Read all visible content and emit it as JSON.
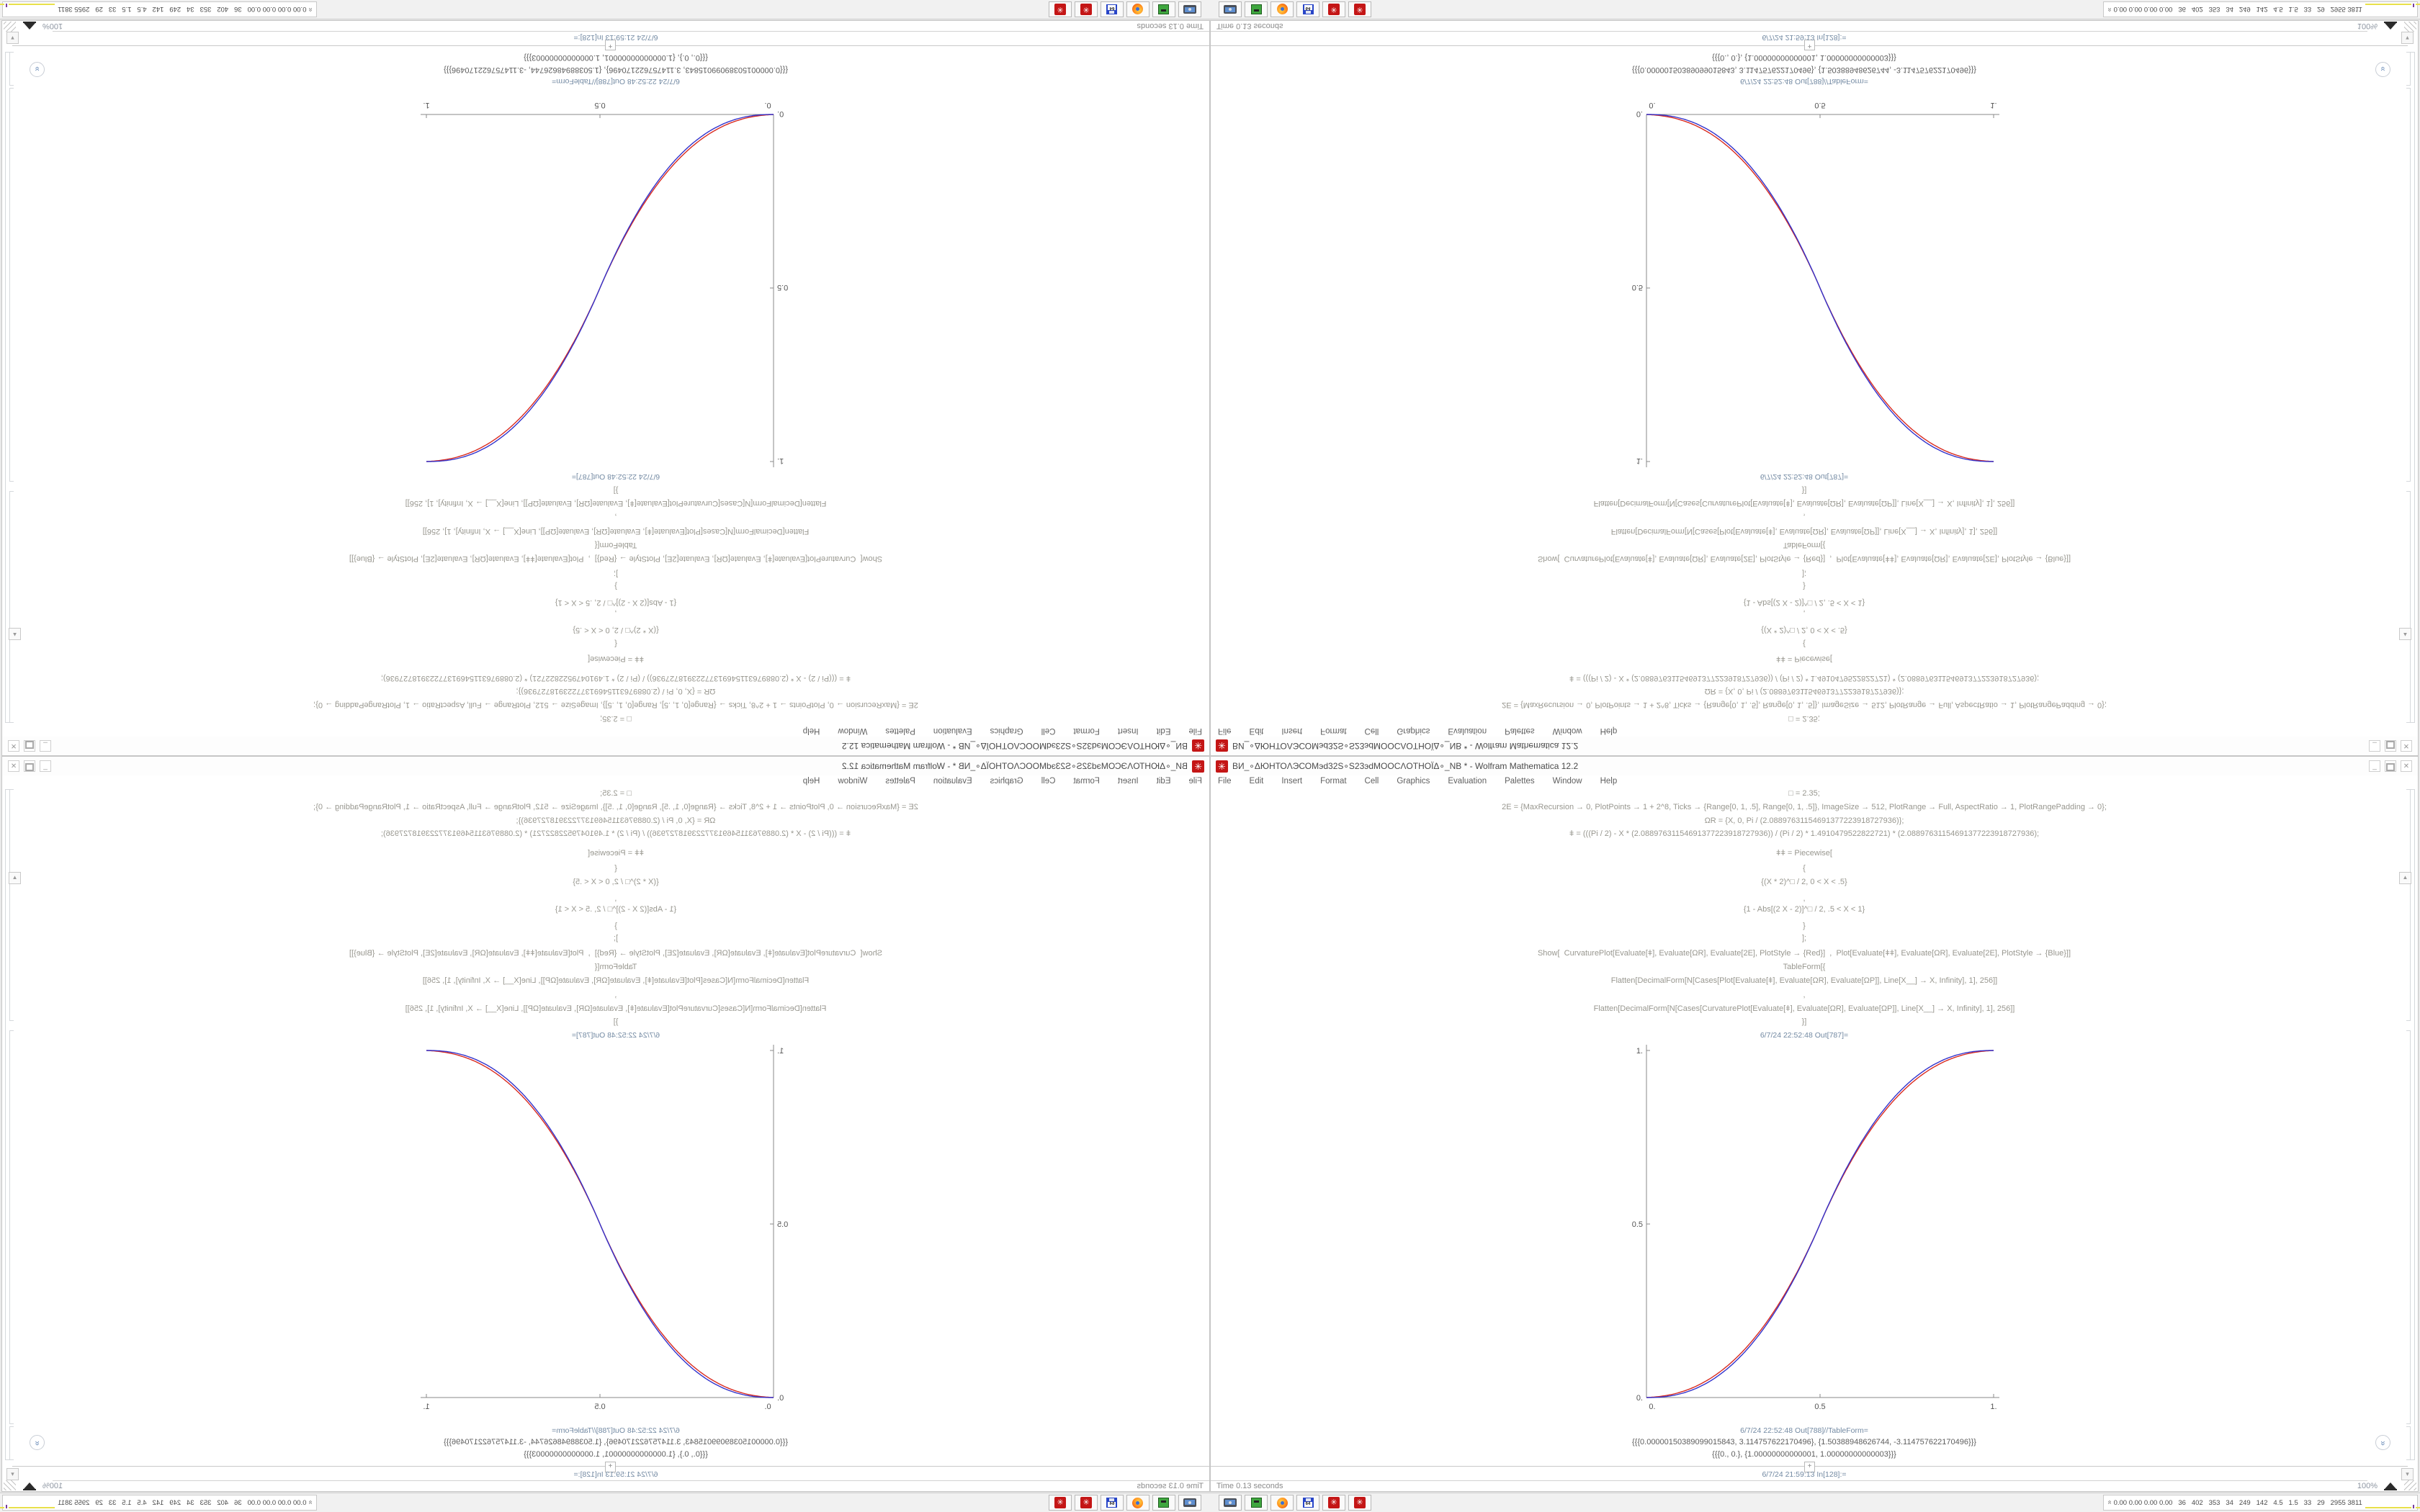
{
  "window": {
    "title": "ВИ_∘ΔЮНТОΛЭСОМэd32S∘S23эdМООСΛОТНОЇΔ∘_NB * - Wolfram Mathematica 12.2",
    "controls": {
      "minimize": "_",
      "close": "✕"
    },
    "menu": [
      "File",
      "Edit",
      "Insert",
      "Format",
      "Cell",
      "Graphics",
      "Evaluation",
      "Palettes",
      "Window",
      "Help"
    ],
    "notebook": {
      "code_lines": [
        "□ = 2.35;",
        "2Ε = {MaxRecursion → 0, PlotPoints → 1 + 2^8, Ticks → {Range[0, 1, .5], Range[0, 1, .5]}, ImageSize → 512, PlotRange → Full, AspectRatio → 1, PlotRangePadding → 0};",
        "ΩR = {X, 0, Pi / (2.08897631154691377223918727936)};",
        "ǂ = (((Pi / 2) - X * (2.08897631154691377223918727936)) / (Pi / 2) * 1.4910479522822721) * (2.08897631154691377223918727936);",
        "ǂǂ = Piecewise[",
        "{",
        "{(X * 2)^□ / 2, 0 < X < .5}",
        ",",
        "{1 - Abs[(2 X - 2)]^□ / 2, .5 < X < 1}",
        "}",
        "];",
        "Show[  CurvaturePlot[Evaluate[ǂ], Evaluate[ΩR], Evaluate[2Ε], PlotStyle → {Red}]  ,  Plot[Evaluate[ǂǂ], Evaluate[ΩR], Evaluate[2Ε], PlotStyle → {Blue}]]",
        "TableForm[{",
        "Flatten[DecimalForm[N[Cases[Plot[Evaluate[ǂ], Evaluate[ΩR], Evaluate[ΩΡ]], Line[X__] → X, Infinity], 1], 256]]",
        ",",
        "Flatten[DecimalForm[N[Cases[CurvaturePlot[Evaluate[ǂ], Evaluate[ΩR], Evaluate[ΩΡ]], Line[X__] → X, Infinity], 1], 256]]",
        "}]"
      ],
      "out1_label": "6/7/24 22:52:48 Out[787]=",
      "out2_label": "6/7/24 22:52:48 Out[788]//TableForm=",
      "out2_rows": [
        "{{{0.00000150389099015843, 3.114757622170496}, {1.50388948626744, -3.114757622170496}}}",
        "{{{0., 0.}, {1.00000000000001, 1.00000000000003}}}"
      ],
      "next_in_label": "6/7/24 21:59:13 In[128]:=",
      "insert_plus": "+",
      "elision_glyph": "»",
      "up_arrow": "▲",
      "drop_arrow": "▾"
    },
    "status": {
      "time": "Time 0.13 seconds",
      "zoom": "100%"
    }
  },
  "taskbar": {
    "icons": [
      "screenshot-tool",
      "file-manager-green",
      "firefox",
      "floppy-64",
      "mathematica-kernel",
      "mathematica-kernel"
    ],
    "floppy_label": "64",
    "mma_glyph": "✳",
    "sysmon_numbers": "0.00 0.00 0.00 0.00   36   402   353   34   249   142   4.5   1.5   33   29   2955 3811"
  },
  "chart_data": {
    "type": "line",
    "title": "6/7/24 22:52:48 Out[787]=",
    "xlabel": "",
    "ylabel": "",
    "xlim": [
      0,
      1
    ],
    "ylim": [
      0,
      1
    ],
    "aspect_ratio": 1,
    "grid": false,
    "legend_position": "none",
    "xticks": {
      "values": [
        0,
        0.5,
        1
      ],
      "labels": [
        "0.",
        "0.5",
        "1."
      ]
    },
    "yticks": {
      "values": [
        0,
        0.5,
        1
      ],
      "labels": [
        "0.",
        "0.5",
        "1."
      ]
    },
    "exponent": 2.35,
    "red_deviation_amplitude": 0.008,
    "x": [
      0,
      0.05,
      0.1,
      0.15,
      0.2,
      0.25,
      0.3,
      0.35,
      0.4,
      0.45,
      0.5,
      0.55,
      0.6,
      0.65,
      0.7,
      0.75,
      0.8,
      0.85,
      0.9,
      0.95,
      1
    ],
    "series": [
      {
        "name": "CurvaturePlot (Red)",
        "color": "#d92b20",
        "values": [
          0,
          0.0022,
          0.0114,
          0.0295,
          0.058,
          0.098,
          0.1505,
          0.2163,
          0.296,
          0.3903,
          0.5,
          0.6097,
          0.704,
          0.7837,
          0.8495,
          0.902,
          0.942,
          0.9705,
          0.9886,
          0.9978,
          1
        ]
      },
      {
        "name": "Plot ǂǂ (Blue)",
        "color": "#3333cc",
        "values": [
          0,
          0.0022,
          0.0114,
          0.0295,
          0.058,
          0.098,
          0.1505,
          0.2163,
          0.296,
          0.3903,
          0.5,
          0.6097,
          0.704,
          0.7837,
          0.8495,
          0.902,
          0.942,
          0.9705,
          0.9886,
          0.9978,
          1
        ]
      }
    ],
    "axis_color": "#8a8a8a",
    "tick_label_color": "#555555"
  }
}
